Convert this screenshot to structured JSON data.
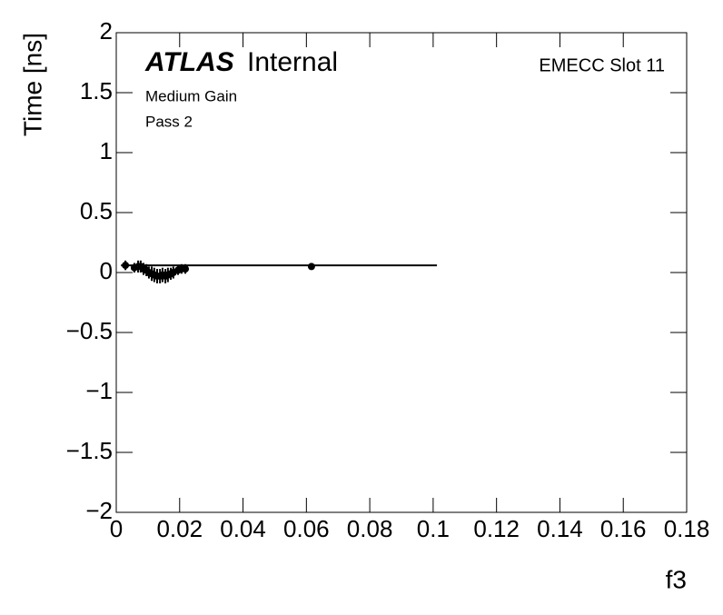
{
  "chart_data": {
    "type": "scatter",
    "experiment": "ATLAS",
    "status": "Internal",
    "labels": [
      "Medium Gain",
      "Pass 2"
    ],
    "region": "EMECC Slot 11",
    "xlabel": "f3",
    "ylabel": "Time [ns]",
    "xlim": [
      0,
      0.18
    ],
    "ylim": [
      -2,
      2
    ],
    "xticks": [
      0,
      0.02,
      0.04,
      0.06,
      0.08,
      0.1,
      0.12,
      0.14,
      0.16,
      0.18
    ],
    "yticks": [
      {
        "value": -2,
        "label": "−2"
      },
      {
        "value": -1.5,
        "label": "−1.5"
      },
      {
        "value": -1,
        "label": "−1"
      },
      {
        "value": -0.5,
        "label": "−0.5"
      },
      0,
      0.5,
      1,
      1.5,
      2
    ],
    "series": [
      {
        "color": "#000000",
        "x": [
          0.0029,
          0.0057,
          0.0069,
          0.0077,
          0.0086,
          0.0095,
          0.0103,
          0.0112,
          0.012,
          0.0129,
          0.0138,
          0.0146,
          0.0155,
          0.0163,
          0.0172,
          0.018,
          0.0195,
          0.0206,
          0.0218,
          0.0616
        ],
        "values": [
          0.06,
          0.04,
          0.05,
          0.05,
          0.03,
          0.02,
          0.0,
          -0.01,
          -0.02,
          -0.03,
          -0.03,
          -0.02,
          -0.03,
          -0.02,
          -0.01,
          0.0,
          0.02,
          0.03,
          0.03,
          0.05
        ],
        "errors": [
          0.04,
          0.04,
          0.05,
          0.05,
          0.05,
          0.05,
          0.05,
          0.06,
          0.06,
          0.06,
          0.06,
          0.06,
          0.06,
          0.06,
          0.05,
          0.05,
          0.04,
          0.04,
          0.04,
          0.02
        ]
      }
    ],
    "fit": {
      "color": "#000000",
      "x": [
        0.0015,
        0.1012
      ],
      "values": [
        0.06,
        0.06
      ]
    }
  }
}
